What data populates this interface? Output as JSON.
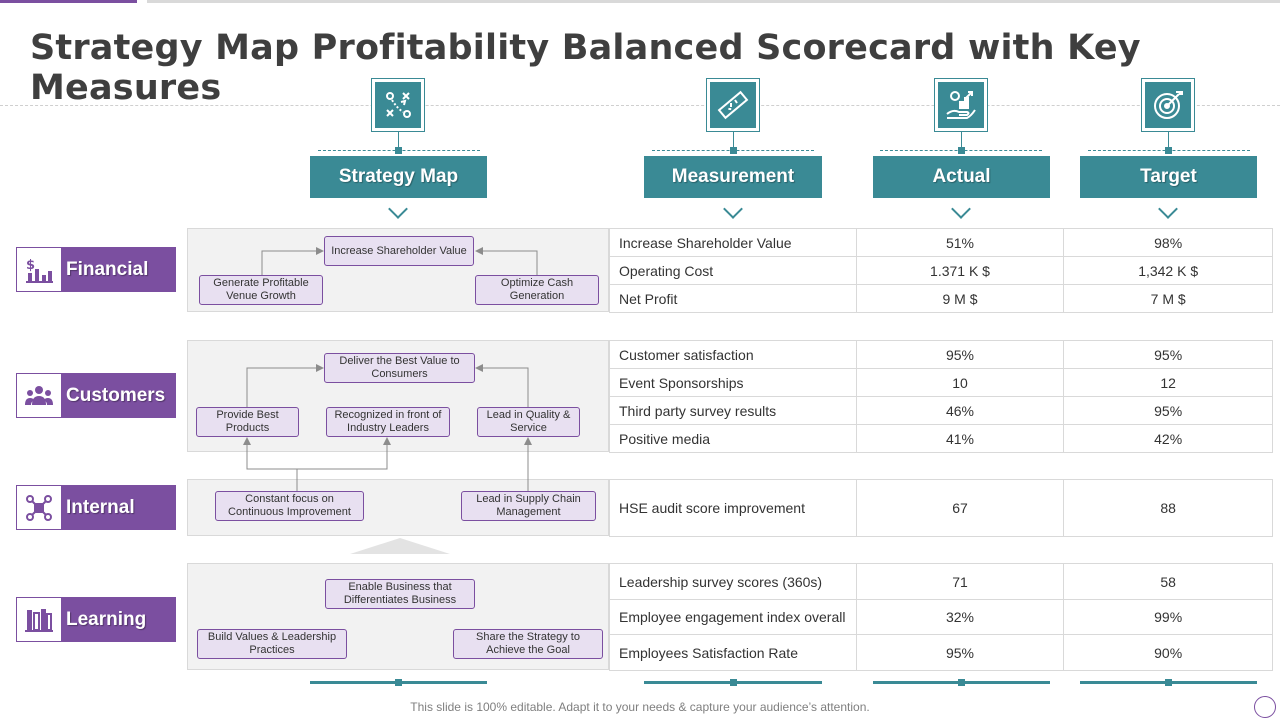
{
  "title": "Strategy Map Profitability Balanced Scorecard with Key Measures",
  "columns": {
    "strategy": "Strategy Map",
    "measurement": "Measurement",
    "actual": "Actual",
    "target": "Target"
  },
  "column_icons": [
    "strategy-plan-icon",
    "ruler-icon",
    "money-growth-icon",
    "target-icon"
  ],
  "perspectives": {
    "financial": "Financial",
    "customers": "Customers",
    "internal": "Internal",
    "learning": "Learning"
  },
  "strategy": {
    "financial": {
      "top": "Increase Shareholder Value",
      "left": "Generate Profitable Venue Growth",
      "right": "Optimize Cash Generation"
    },
    "customers": {
      "top": "Deliver the Best Value to Consumers",
      "left": "Provide Best Products",
      "middle": "Recognized in front of Industry Leaders",
      "right": "Lead in Quality & Service"
    },
    "internal": {
      "left": "Constant focus on Continuous Improvement",
      "right": "Lead in Supply Chain Management"
    },
    "learning": {
      "top": "Enable Business that Differentiates Business",
      "left": "Build Values & Leadership Practices",
      "right": "Share the Strategy to Achieve the Goal"
    }
  },
  "tables": {
    "financial": [
      {
        "measure": "Increase Shareholder Value",
        "actual": "51%",
        "target": "98%"
      },
      {
        "measure": "Operating Cost",
        "actual": "1.371 K $",
        "target": "1,342 K $"
      },
      {
        "measure": "Net Profit",
        "actual": "9 M $",
        "target": "7 M $"
      }
    ],
    "customers": [
      {
        "measure": "Customer satisfaction",
        "actual": "95%",
        "target": "95%"
      },
      {
        "measure": "Event Sponsorships",
        "actual": "10",
        "target": "12"
      },
      {
        "measure": "Third party survey results",
        "actual": "46%",
        "target": "95%"
      },
      {
        "measure": "Positive media",
        "actual": "41%",
        "target": "42%"
      }
    ],
    "internal": [
      {
        "measure": "HSE  audit score improvement",
        "actual": "67",
        "target": "88"
      }
    ],
    "learning": [
      {
        "measure": "Leadership survey scores (360s)",
        "actual": "71",
        "target": "58"
      },
      {
        "measure": "Employee engagement index overall",
        "actual": "32%",
        "target": "99%"
      },
      {
        "measure": "Employees Satisfaction Rate",
        "actual": "95%",
        "target": "90%"
      }
    ]
  },
  "footer": "This slide is 100% editable. Adapt it to your needs & capture your audience’s attention.",
  "colors": {
    "teal": "#3a8a95",
    "purple": "#7b4fa0",
    "box_fill": "#e8e0f1",
    "panel": "#f2f2f2"
  }
}
